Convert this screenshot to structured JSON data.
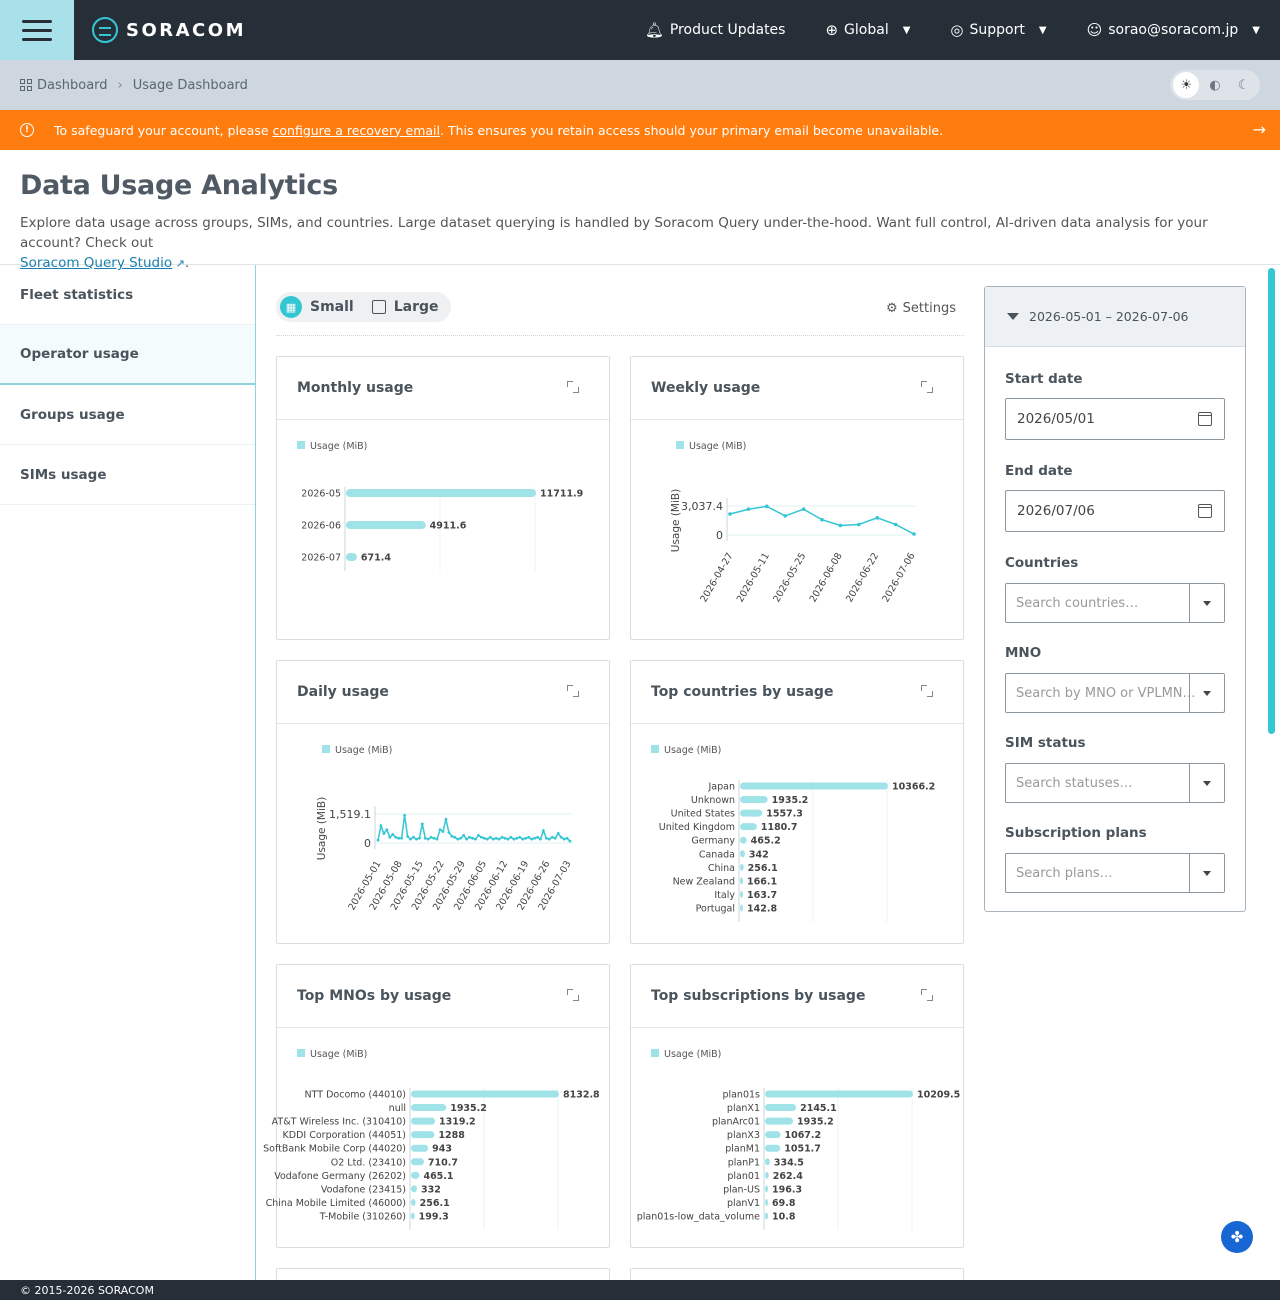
{
  "topbar": {
    "brand": "SORACOM",
    "product_updates": "Product Updates",
    "region": "Global",
    "support": "Support",
    "user": "sorao@soracom.jp"
  },
  "breadcrumb": {
    "root": "Dashboard",
    "current": "Usage Dashboard"
  },
  "banner": {
    "prefix": "To safeguard your account, please ",
    "link": "configure a recovery email",
    "suffix": ". This ensures you retain access should your primary email become unavailable."
  },
  "header": {
    "title": "Data Usage Analytics",
    "description": "Explore data usage across groups, SIMs, and countries. Large dataset querying is handled by Soracom Query under-the-hood. Want full control, AI-driven data analysis for your account? Check out ",
    "link": "Soracom Query Studio",
    "link_suffix": "."
  },
  "sidebar": {
    "items": [
      {
        "label": "Fleet statistics"
      },
      {
        "label": "Operator usage"
      },
      {
        "label": "Groups usage"
      },
      {
        "label": "SIMs usage"
      }
    ]
  },
  "toolbar": {
    "small": "Small",
    "large": "Large",
    "settings": "Settings"
  },
  "cards": {
    "monthly": "Monthly usage",
    "weekly": "Weekly usage",
    "daily": "Daily usage",
    "countries": "Top countries by usage",
    "mnos": "Top MNOs by usage",
    "subscriptions": "Top subscriptions by usage"
  },
  "filters": {
    "range": "2026-05-01 – 2026-07-06",
    "start_label": "Start date",
    "start_value": "2026/05/01",
    "end_label": "End date",
    "end_value": "2026/07/06",
    "countries_label": "Countries",
    "countries_placeholder": "Search countries…",
    "mno_label": "MNO",
    "mno_placeholder": "Search by MNO or VPLMN…",
    "status_label": "SIM status",
    "status_placeholder": "Search statuses…",
    "plans_label": "Subscription plans",
    "plans_placeholder": "Search plans…"
  },
  "footer": {
    "copyright": "© 2015-2026 SORACOM"
  },
  "colors": {
    "accent": "#34c6d3",
    "bar": "#9fe3e9",
    "warning": "#ff7d0f",
    "nav": "#262f38"
  },
  "chart_data": [
    {
      "id": "monthly",
      "type": "bar",
      "orientation": "horizontal",
      "legend": "Usage (MiB)",
      "categories": [
        "2026-05",
        "2026-06",
        "2026-07"
      ],
      "values": [
        11711.9,
        4911.6,
        671.4
      ],
      "labels": [
        "11711.9",
        "4911.6",
        "671.4"
      ]
    },
    {
      "id": "weekly",
      "type": "line",
      "legend": "Usage (MiB)",
      "ylabel": "Usage (MiB)",
      "yticks": [
        "0",
        "3,037.4"
      ],
      "ylim": [
        0,
        3037.4
      ],
      "x_labels": [
        "2026-04-27",
        "2026-05-11",
        "2026-05-25",
        "2026-06-08",
        "2026-06-22",
        "2026-07-06"
      ],
      "values": [
        2200,
        2700,
        3000,
        2000,
        2700,
        1600,
        1000,
        1100,
        1800,
        1100,
        100
      ]
    },
    {
      "id": "daily",
      "type": "line",
      "legend": "Usage (MiB)",
      "ylabel": "Usage (MiB)",
      "yticks": [
        "0",
        "1,519.1"
      ],
      "ylim": [
        0,
        1519.1
      ],
      "x_labels": [
        "2026-05-01",
        "2026-05-08",
        "2026-05-15",
        "2026-05-22",
        "2026-05-29",
        "2026-06-05",
        "2026-06-12",
        "2026-06-19",
        "2026-06-26",
        "2026-07-03"
      ],
      "values": [
        150,
        900,
        500,
        700,
        300,
        450,
        300,
        250,
        250,
        1450,
        350,
        200,
        300,
        200,
        250,
        1000,
        250,
        200,
        300,
        250,
        200,
        700,
        600,
        1250,
        550,
        350,
        300,
        200,
        250,
        400,
        200,
        300,
        250,
        200,
        400,
        300,
        250,
        200,
        300,
        200,
        250,
        200,
        300,
        250,
        200,
        300,
        200,
        250,
        300,
        200,
        250,
        300,
        200,
        250,
        300,
        200,
        650,
        250,
        200,
        300,
        250,
        500,
        300,
        200,
        250,
        100
      ]
    },
    {
      "id": "countries",
      "type": "bar",
      "orientation": "horizontal",
      "legend": "Usage (MiB)",
      "categories": [
        "Japan",
        "Unknown",
        "United States",
        "United Kingdom",
        "Germany",
        "Canada",
        "China",
        "New Zealand",
        "Italy",
        "Portugal"
      ],
      "values": [
        10366.2,
        1935.2,
        1557.3,
        1180.7,
        465.2,
        342,
        256.1,
        166.1,
        163.7,
        142.8
      ],
      "labels": [
        "10366.2",
        "1935.2",
        "1557.3",
        "1180.7",
        "465.2",
        "342",
        "256.1",
        "166.1",
        "163.7",
        "142.8"
      ]
    },
    {
      "id": "mnos",
      "type": "bar",
      "orientation": "horizontal",
      "legend": "Usage (MiB)",
      "categories": [
        "NTT Docomo (44010)",
        "null",
        "AT&T Wireless Inc. (310410)",
        "KDDI Corporation (44051)",
        "SoftBank Mobile Corp (44020)",
        "O2 Ltd. (23410)",
        "Vodafone Germany (26202)",
        "Vodafone (23415)",
        "China Mobile Limited (46000)",
        "T-Mobile (310260)"
      ],
      "values": [
        8132.8,
        1935.2,
        1319.2,
        1288,
        943,
        710.7,
        465.1,
        332,
        256.1,
        199.3
      ],
      "labels": [
        "8132.8",
        "1935.2",
        "1319.2",
        "1288",
        "943",
        "710.7",
        "465.1",
        "332",
        "256.1",
        "199.3"
      ]
    },
    {
      "id": "subscriptions",
      "type": "bar",
      "orientation": "horizontal",
      "legend": "Usage (MiB)",
      "categories": [
        "plan01s",
        "planX1",
        "planArc01",
        "planX3",
        "planM1",
        "planP1",
        "plan01",
        "plan-US",
        "planV1",
        "plan01s-low_data_volume"
      ],
      "values": [
        10209.5,
        2145.1,
        1935.2,
        1067.2,
        1051.7,
        334.5,
        262.4,
        196.3,
        69.8,
        10.8
      ],
      "labels": [
        "10209.5",
        "2145.1",
        "1935.2",
        "1067.2",
        "1051.7",
        "334.5",
        "262.4",
        "196.3",
        "69.8",
        "10.8"
      ]
    }
  ]
}
